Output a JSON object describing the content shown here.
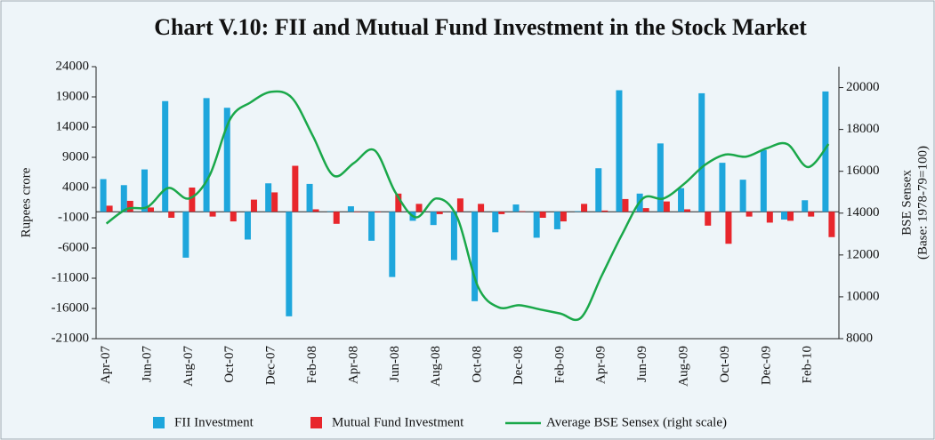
{
  "chart_data": {
    "type": "bar_line",
    "title": "Chart V.10: FII and Mutual Fund Investment in the Stock Market",
    "y_label": "Rupees crore",
    "y2_label": [
      "BSE Sensex",
      "(Base: 1978-79=100)"
    ],
    "categories": [
      "Apr-07",
      null,
      "Jun-07",
      null,
      "Aug-07",
      null,
      "Oct-07",
      null,
      "Dec-07",
      null,
      "Feb-08",
      null,
      "Apr-08",
      null,
      "Jun-08",
      null,
      "Aug-08",
      null,
      "Oct-08",
      null,
      "Dec-08",
      null,
      "Feb-09",
      null,
      "Apr-09",
      null,
      "Jun-09",
      null,
      "Aug-09",
      null,
      "Oct-09",
      null,
      "Dec-09",
      null,
      "Feb-10",
      null
    ],
    "series": [
      {
        "name": "FII Investment",
        "type": "bar",
        "color": "#1ea6dc",
        "values": [
          5400,
          4400,
          7000,
          18300,
          -7600,
          18800,
          17200,
          -4600,
          4700,
          -17300,
          4600,
          100,
          900,
          -4800,
          -10800,
          -1500,
          -2200,
          -8000,
          -14800,
          -3400,
          1200,
          -4300,
          -2900,
          100,
          7200,
          20100,
          3000,
          11300,
          3900,
          19600,
          8100,
          5300,
          10200,
          -1300,
          1900,
          19900
        ]
      },
      {
        "name": "Mutual Fund Investment",
        "type": "bar",
        "color": "#e8262c",
        "values": [
          1000,
          1800,
          700,
          -1000,
          4000,
          -800,
          -1600,
          2000,
          3200,
          7600,
          400,
          -2000,
          0,
          -100,
          3000,
          1300,
          -400,
          2200,
          1300,
          -400,
          100,
          -1000,
          -1600,
          1300,
          200,
          2100,
          600,
          1700,
          400,
          -2300,
          -5300,
          -800,
          -1800,
          -1500,
          -800,
          -4200
        ]
      },
      {
        "name": "Average BSE Sensex (right scale)",
        "type": "line",
        "axis": "y2",
        "color": "#1aa84a",
        "values": [
          13500,
          14200,
          14300,
          15200,
          14700,
          15800,
          18500,
          19300,
          19800,
          19500,
          17700,
          15800,
          16400,
          17000,
          15000,
          13800,
          14700,
          13800,
          10500,
          9500,
          9600,
          9400,
          9200,
          9000,
          11000,
          13000,
          14700,
          14700,
          15400,
          16300,
          16800,
          16700,
          17100,
          17300,
          16200,
          17300
        ]
      }
    ],
    "ylim": [
      -21000,
      24000
    ],
    "yticks": [
      24000,
      19000,
      14000,
      9000,
      4000,
      -1000,
      -6000,
      -11000,
      -16000,
      -21000
    ],
    "y2lim": [
      8000,
      21000
    ],
    "y2ticks": [
      20000,
      18000,
      16000,
      14000,
      12000,
      10000,
      8000
    ]
  }
}
